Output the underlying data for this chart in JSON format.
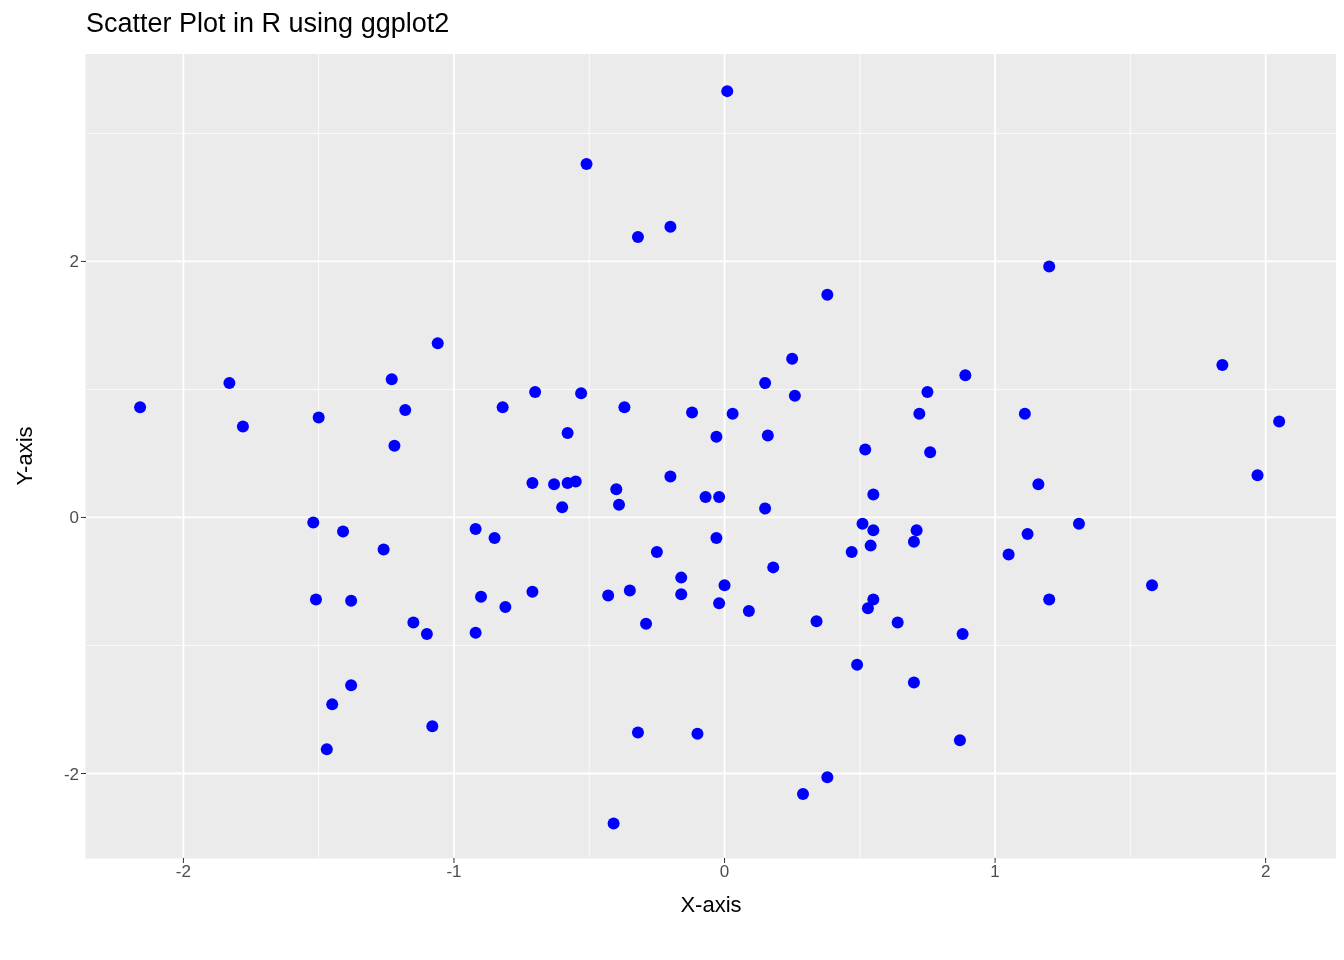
{
  "chart_data": {
    "type": "scatter",
    "title": "Scatter Plot in R using ggplot2",
    "xlabel": "X-axis",
    "ylabel": "Y-axis",
    "xlim": [
      -2.36,
      2.26
    ],
    "xticks": [
      -2,
      -1,
      0,
      1,
      2
    ],
    "ylim": [
      -2.66,
      3.62
    ],
    "yticks": [
      -2,
      0,
      2
    ],
    "grid": true,
    "legend": false,
    "marker": "circle",
    "series": [
      {
        "color": "#0000ff",
        "x": [
          -2.16,
          -1.83,
          -1.78,
          -1.5,
          -1.52,
          -1.51,
          -1.41,
          -1.38,
          -1.38,
          -1.45,
          -1.47,
          -1.23,
          -1.22,
          -1.18,
          -1.26,
          -1.15,
          -1.1,
          -1.08,
          -1.06,
          -0.92,
          -0.9,
          -0.92,
          -0.85,
          -0.82,
          -0.81,
          -0.71,
          -0.7,
          -0.71,
          -0.63,
          -0.58,
          -0.55,
          -0.6,
          -0.58,
          -0.53,
          -0.51,
          -0.4,
          -0.39,
          -0.43,
          -0.37,
          -0.35,
          -0.32,
          -0.29,
          -0.32,
          -0.41,
          -0.25,
          -0.2,
          -0.2,
          -0.16,
          -0.16,
          -0.12,
          -0.1,
          -0.07,
          -0.03,
          -0.02,
          -0.03,
          0.0,
          -0.02,
          0.01,
          0.03,
          0.09,
          0.15,
          0.15,
          0.16,
          0.18,
          0.25,
          0.26,
          0.34,
          0.38,
          0.38,
          0.29,
          0.47,
          0.49,
          0.51,
          0.52,
          0.54,
          0.55,
          0.55,
          0.55,
          0.53,
          0.64,
          0.7,
          0.71,
          0.7,
          0.72,
          0.75,
          0.76,
          0.88,
          0.87,
          0.89,
          1.05,
          1.11,
          1.12,
          1.16,
          1.2,
          1.2,
          1.31,
          1.58,
          1.84,
          1.97,
          2.05
        ],
        "values": [
          0.86,
          1.05,
          0.71,
          0.78,
          -0.04,
          -0.64,
          -0.11,
          -0.65,
          -1.31,
          -1.46,
          -1.81,
          1.08,
          0.56,
          0.84,
          -0.25,
          -0.82,
          -0.91,
          -1.63,
          1.36,
          -0.09,
          -0.62,
          -0.9,
          -0.16,
          0.86,
          -0.7,
          0.27,
          0.98,
          -0.58,
          0.26,
          0.27,
          0.28,
          0.08,
          0.66,
          0.97,
          2.76,
          0.22,
          0.1,
          -0.61,
          0.86,
          -0.57,
          2.19,
          -0.83,
          -1.68,
          -2.39,
          -0.27,
          0.32,
          2.27,
          -0.47,
          -0.6,
          0.82,
          -1.69,
          0.16,
          0.63,
          0.16,
          -0.16,
          -0.53,
          -0.67,
          3.33,
          0.81,
          -0.73,
          1.05,
          0.07,
          0.64,
          -0.39,
          1.24,
          0.95,
          -0.81,
          1.74,
          -2.03,
          -2.16,
          -0.27,
          -1.15,
          -0.05,
          0.53,
          -0.22,
          -0.1,
          0.18,
          -0.64,
          -0.71,
          -0.82,
          -0.19,
          -0.1,
          -1.29,
          0.81,
          0.98,
          0.51,
          -0.91,
          -1.74,
          1.11,
          -0.29,
          0.81,
          -0.13,
          0.26,
          1.96,
          -0.64,
          -0.05,
          -0.53,
          1.19,
          0.33,
          0.75
        ]
      }
    ]
  }
}
